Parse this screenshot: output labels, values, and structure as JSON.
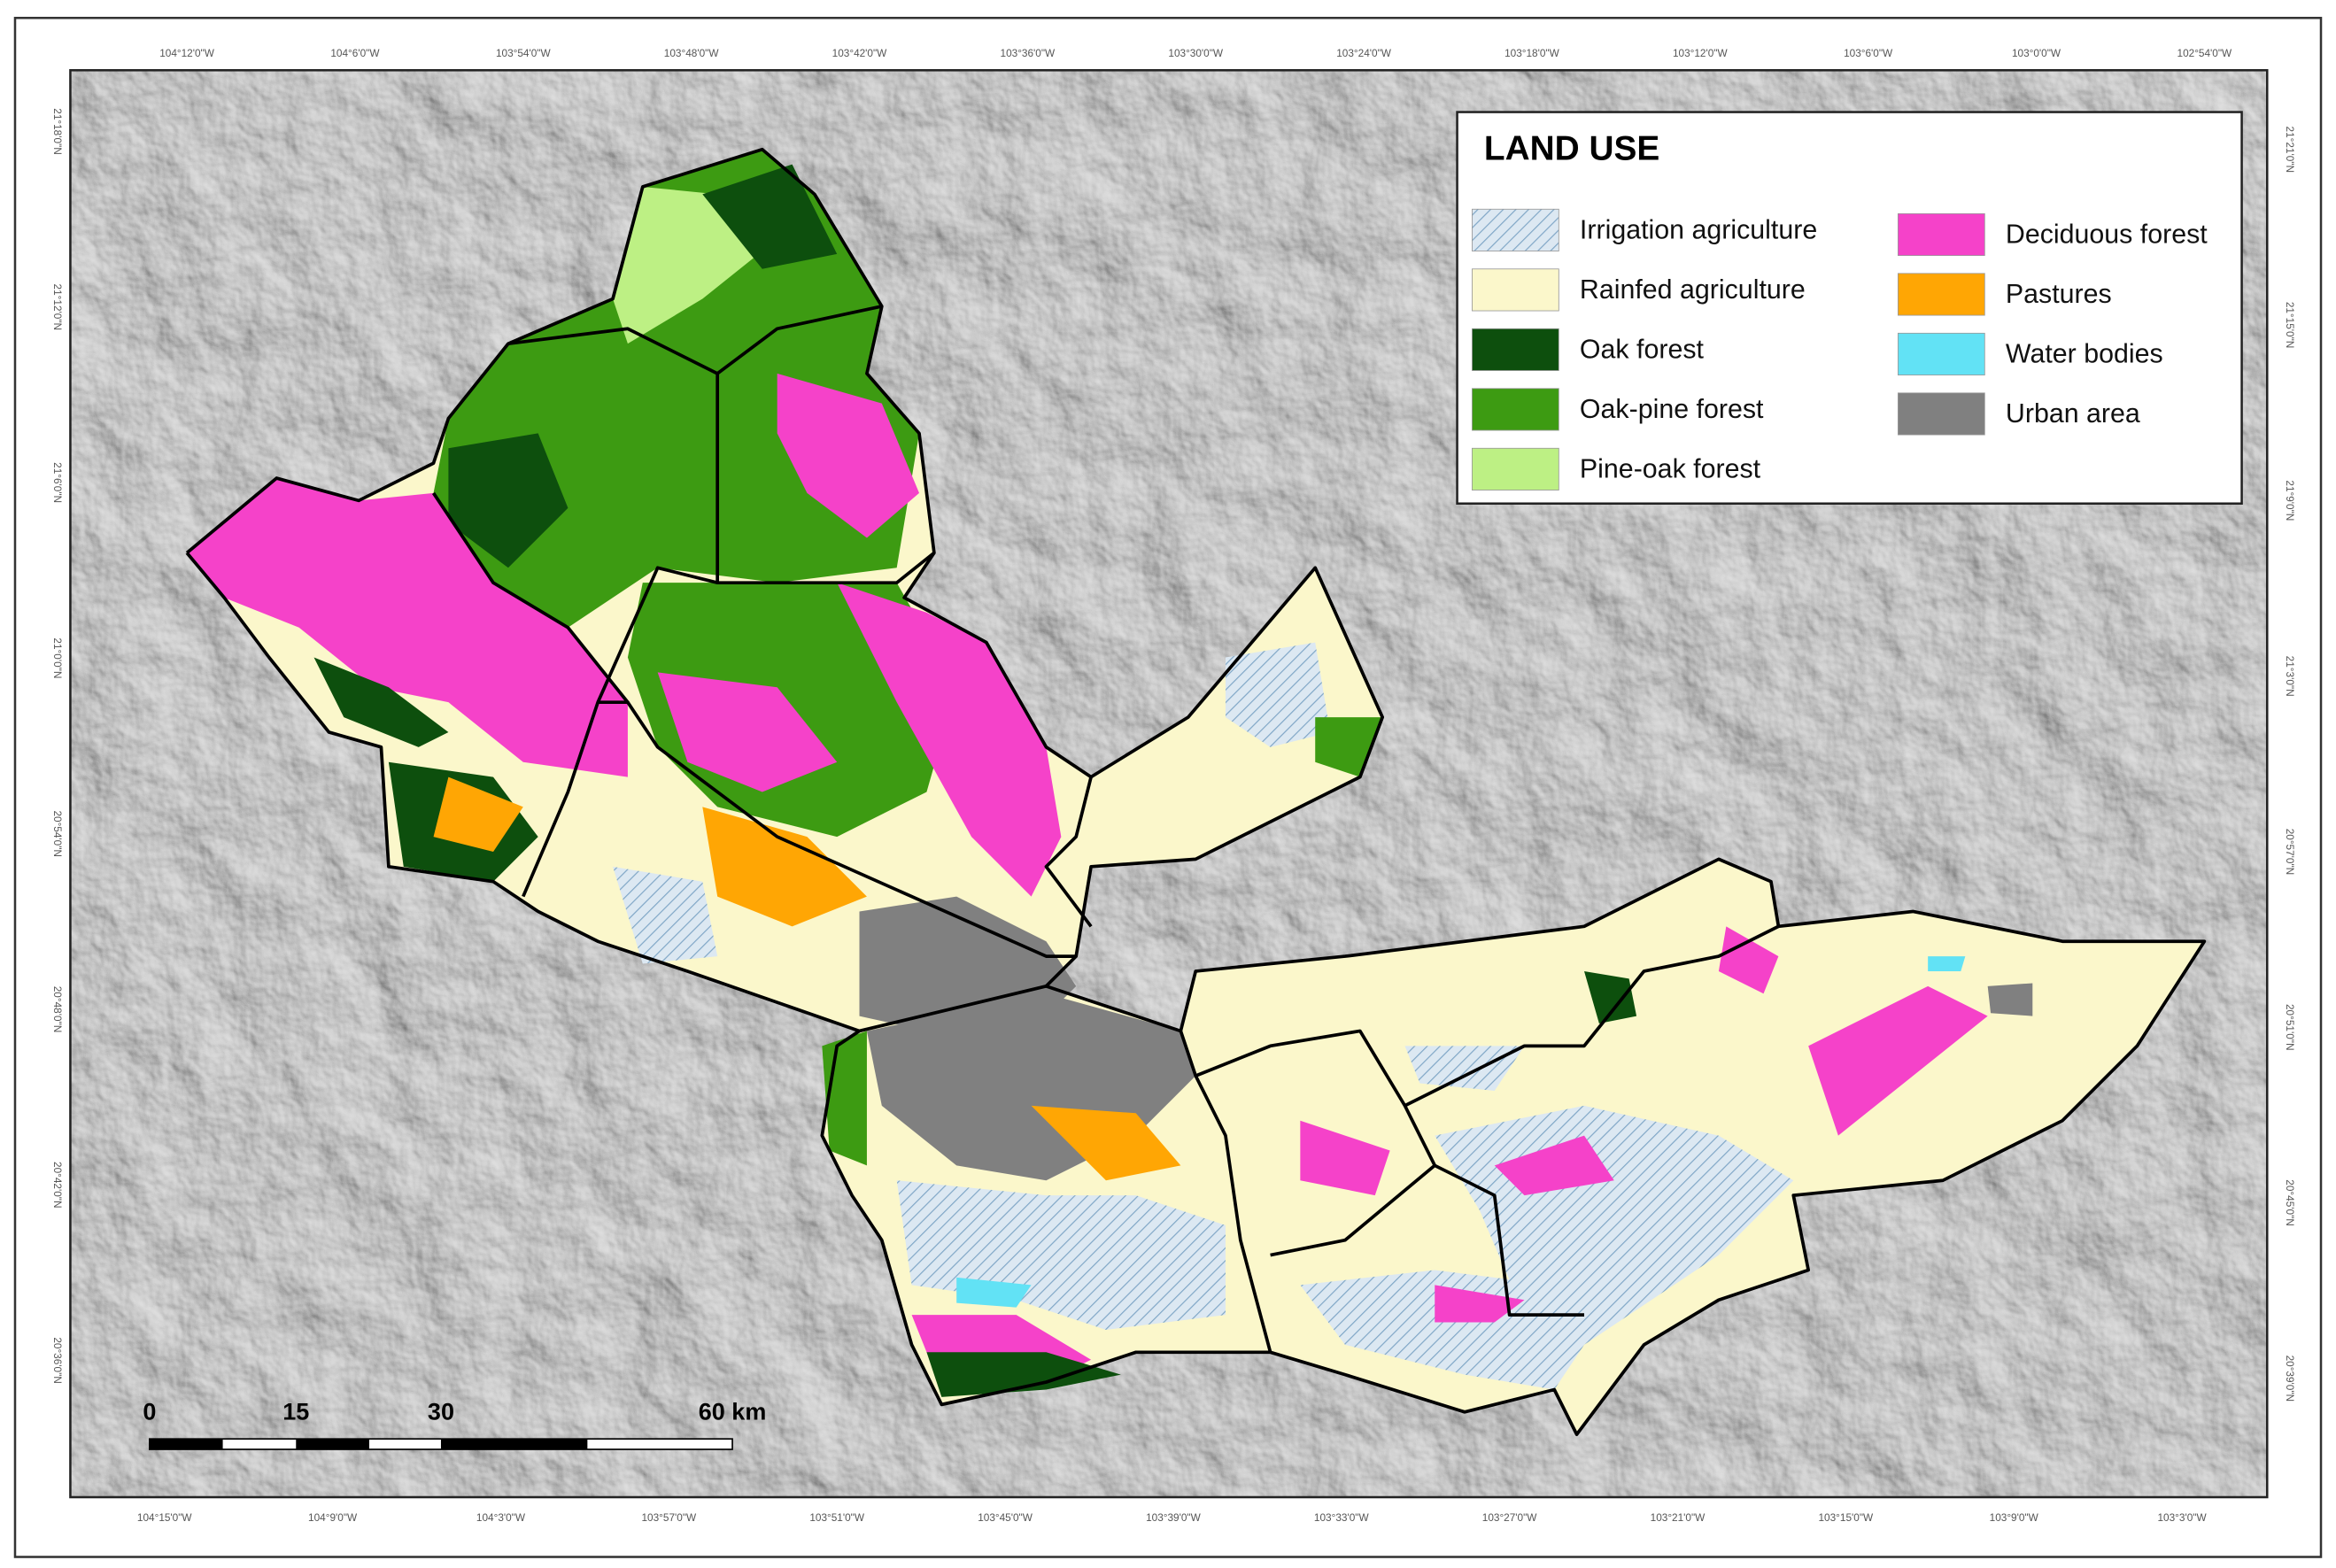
{
  "legend": {
    "title": "LAND USE",
    "items": [
      {
        "label": "Irrigation agriculture",
        "color": "#c8dcec",
        "pattern": "hatch"
      },
      {
        "label": "Rainfed agriculture",
        "color": "#fbf7cb"
      },
      {
        "label": "Oak forest",
        "color": "#0d4f0d"
      },
      {
        "label": "Oak-pine forest",
        "color": "#3d9b12"
      },
      {
        "label": "Pine-oak forest",
        "color": "#bdf084"
      },
      {
        "label": "Deciduous forest",
        "color": "#f542c9"
      },
      {
        "label": "Pastures",
        "color": "#ffa604"
      },
      {
        "label": "Water bodies",
        "color": "#62e2f5"
      },
      {
        "label": "Urban area",
        "color": "#808080"
      }
    ]
  },
  "scale_bar": {
    "labels": [
      "0",
      "15",
      "30",
      "60 km"
    ]
  },
  "coordinates": {
    "top": [
      "104°12'0\"W",
      "104°6'0\"W",
      "103°54'0\"W",
      "103°48'0\"W",
      "103°42'0\"W",
      "103°36'0\"W",
      "103°30'0\"W",
      "103°24'0\"W",
      "103°18'0\"W",
      "103°12'0\"W",
      "103°6'0\"W",
      "103°0'0\"W",
      "102°54'0\"W"
    ],
    "bottom": [
      "104°15'0\"W",
      "104°9'0\"W",
      "104°3'0\"W",
      "103°57'0\"W",
      "103°51'0\"W",
      "103°45'0\"W",
      "103°39'0\"W",
      "103°33'0\"W",
      "103°27'0\"W",
      "103°21'0\"W",
      "103°15'0\"W",
      "103°9'0\"W",
      "103°3'0\"W"
    ],
    "left": [
      "21°18'0\"N",
      "21°12'0\"N",
      "21°6'0\"N",
      "21°0'0\"N",
      "20°54'0\"N",
      "20°48'0\"N",
      "20°42'0\"N",
      "20°36'0\"N"
    ],
    "right": [
      "21°21'0\"N",
      "21°15'0\"N",
      "21°9'0\"N",
      "21°3'0\"N",
      "20°57'0\"N",
      "20°51'0\"N",
      "20°45'0\"N",
      "20°39'0\"N"
    ]
  }
}
